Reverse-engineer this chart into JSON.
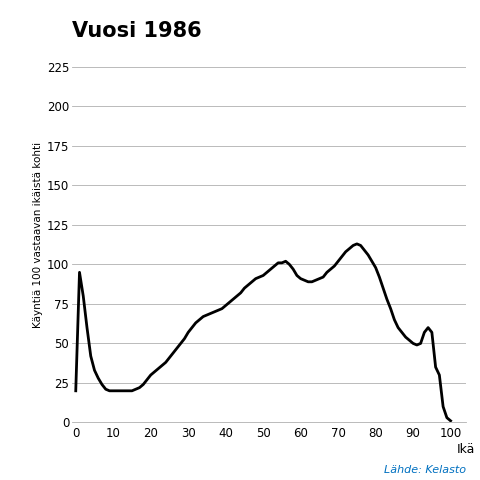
{
  "title": "Vuosi 1986",
  "xlabel": "Ikä",
  "ylabel": "Käyntiä 100 vastaavan ikäistä kohti",
  "source_text": "Lähde: Kelasto",
  "xlim": [
    -1,
    104
  ],
  "ylim": [
    0,
    237
  ],
  "xticks": [
    0,
    10,
    20,
    30,
    40,
    50,
    60,
    70,
    80,
    90,
    100
  ],
  "yticks": [
    0,
    25,
    50,
    75,
    100,
    125,
    150,
    175,
    200,
    225
  ],
  "line_color": "#000000",
  "line_width": 2.0,
  "background_color": "#ffffff",
  "source_color": "#0070c0",
  "curve_ages": [
    0,
    1,
    2,
    3,
    4,
    5,
    6,
    7,
    8,
    9,
    10,
    11,
    12,
    13,
    14,
    15,
    16,
    17,
    18,
    19,
    20,
    21,
    22,
    23,
    24,
    25,
    26,
    27,
    28,
    29,
    30,
    31,
    32,
    33,
    34,
    35,
    36,
    37,
    38,
    39,
    40,
    41,
    42,
    43,
    44,
    45,
    46,
    47,
    48,
    49,
    50,
    51,
    52,
    53,
    54,
    55,
    56,
    57,
    58,
    59,
    60,
    61,
    62,
    63,
    64,
    65,
    66,
    67,
    68,
    69,
    70,
    71,
    72,
    73,
    74,
    75,
    76,
    77,
    78,
    79,
    80,
    81,
    82,
    83,
    84,
    85,
    86,
    87,
    88,
    89,
    90,
    91,
    92,
    93,
    94,
    95,
    96,
    97,
    98,
    99,
    100
  ],
  "curve_vals": [
    20,
    95,
    80,
    60,
    42,
    33,
    28,
    24,
    21,
    20,
    20,
    20,
    20,
    20,
    20,
    20,
    21,
    22,
    24,
    27,
    30,
    32,
    34,
    36,
    38,
    41,
    44,
    47,
    50,
    53,
    57,
    60,
    63,
    65,
    67,
    68,
    69,
    70,
    71,
    72,
    74,
    76,
    78,
    80,
    82,
    85,
    87,
    89,
    91,
    92,
    93,
    95,
    97,
    99,
    101,
    101,
    102,
    100,
    97,
    93,
    91,
    90,
    89,
    89,
    90,
    91,
    92,
    95,
    97,
    99,
    102,
    105,
    108,
    110,
    112,
    113,
    112,
    109,
    106,
    102,
    98,
    92,
    85,
    78,
    72,
    65,
    60,
    57,
    54,
    52,
    50,
    49,
    50,
    57,
    60,
    57,
    35,
    30,
    10,
    3,
    1
  ]
}
